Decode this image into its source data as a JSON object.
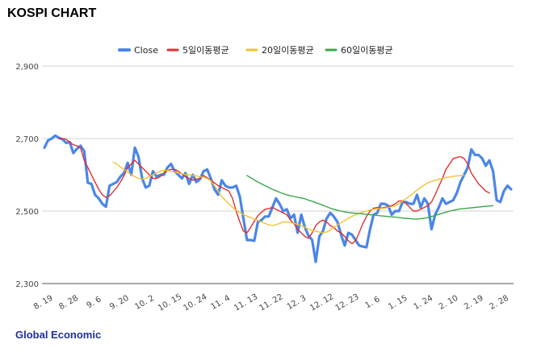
{
  "header": {
    "title": "KOSPI CHART"
  },
  "footer": {
    "source": "Global Economic"
  },
  "chart_data": {
    "type": "line",
    "ylim": [
      2300,
      2900
    ],
    "yticks": [
      2300,
      2500,
      2700,
      2900
    ],
    "grid": true,
    "legend_position": "top",
    "xticks": [
      "8. 19",
      "8. 28",
      "9. 6",
      "9. 20",
      "10. 2",
      "10. 15",
      "10. 24",
      "11. 4",
      "11. 13",
      "11. 22",
      "12. 3",
      "12. 12",
      "12. 23",
      "1. 6",
      "1. 15",
      "1. 24",
      "2. 10",
      "2. 19",
      "2. 28"
    ],
    "x_index": [
      0,
      7,
      14,
      21,
      28,
      35,
      42,
      49,
      56,
      63,
      70,
      77,
      84,
      91,
      98,
      105,
      112,
      119,
      126
    ],
    "series": [
      {
        "name": "Close",
        "color": "#4a86e8",
        "start": 0,
        "values": [
          2675,
          2695,
          2700,
          2708,
          2702,
          2698,
          2688,
          2690,
          2660,
          2672,
          2680,
          2665,
          2578,
          2575,
          2545,
          2535,
          2520,
          2512,
          2570,
          2575,
          2580,
          2595,
          2605,
          2633,
          2600,
          2675,
          2650,
          2590,
          2565,
          2570,
          2610,
          2595,
          2600,
          2600,
          2620,
          2630,
          2610,
          2600,
          2590,
          2605,
          2575,
          2600,
          2580,
          2588,
          2610,
          2615,
          2590,
          2560,
          2545,
          2585,
          2570,
          2565,
          2565,
          2570,
          2540,
          2480,
          2420,
          2420,
          2418,
          2470,
          2475,
          2485,
          2485,
          2510,
          2535,
          2520,
          2500,
          2505,
          2480,
          2490,
          2440,
          2490,
          2455,
          2432,
          2420,
          2360,
          2430,
          2445,
          2480,
          2495,
          2485,
          2470,
          2435,
          2405,
          2440,
          2435,
          2420,
          2405,
          2402,
          2400,
          2450,
          2490,
          2495,
          2520,
          2520,
          2515,
          2490,
          2500,
          2500,
          2525,
          2525,
          2520,
          2520,
          2545,
          2510,
          2535,
          2520,
          2450,
          2490,
          2510,
          2535,
          2520,
          2525,
          2530,
          2550,
          2580,
          2600,
          2620,
          2670,
          2655,
          2655,
          2645,
          2625,
          2640,
          2610,
          2530,
          2525,
          2555,
          2570,
          2560
        ]
      },
      {
        "name": "5일이동평균",
        "color": "#e03030",
        "start": 4,
        "values": [
          2700,
          2700,
          2698,
          2690,
          2683,
          2680,
          2674,
          2640,
          2620,
          2600,
          2580,
          2560,
          2545,
          2538,
          2542,
          2553,
          2565,
          2580,
          2598,
          2620,
          2630,
          2640,
          2630,
          2620,
          2610,
          2600,
          2590,
          2590,
          2595,
          2605,
          2612,
          2615,
          2615,
          2610,
          2602,
          2595,
          2590,
          2585,
          2588,
          2590,
          2598,
          2592,
          2585,
          2578,
          2570,
          2565,
          2560,
          2555,
          2535,
          2500,
          2470,
          2445,
          2440,
          2455,
          2472,
          2487,
          2497,
          2505,
          2507,
          2510,
          2505,
          2500,
          2495,
          2490,
          2475,
          2465,
          2450,
          2440,
          2430,
          2425,
          2440,
          2460,
          2470,
          2475,
          2470,
          2460,
          2455,
          2445,
          2440,
          2430,
          2418,
          2410,
          2418,
          2440,
          2465,
          2485,
          2500,
          2508,
          2510,
          2508,
          2510,
          2512,
          2515,
          2520,
          2528,
          2528,
          2520,
          2510,
          2500,
          2500,
          2505,
          2510,
          2515,
          2525,
          2545,
          2568,
          2590,
          2615,
          2630,
          2645,
          2648,
          2650,
          2645,
          2630,
          2605,
          2590,
          2575,
          2565,
          2555,
          2550
        ]
      },
      {
        "name": "20일이동평균",
        "color": "#f1c232",
        "start": 19,
        "values": [
          2635,
          2630,
          2622,
          2615,
          2608,
          2600,
          2595,
          2590,
          2588,
          2590,
          2595,
          2600,
          2605,
          2610,
          2612,
          2612,
          2610,
          2608,
          2605,
          2603,
          2600,
          2600,
          2598,
          2597,
          2595,
          2593,
          2590,
          2583,
          2570,
          2555,
          2540,
          2530,
          2520,
          2510,
          2502,
          2496,
          2490,
          2486,
          2482,
          2478,
          2474,
          2470,
          2466,
          2462,
          2460,
          2462,
          2466,
          2470,
          2470,
          2468,
          2466,
          2463,
          2460,
          2455,
          2450,
          2446,
          2444,
          2442,
          2440,
          2442,
          2448,
          2455,
          2462,
          2468,
          2474,
          2480,
          2485,
          2490,
          2494,
          2497,
          2500,
          2503,
          2505,
          2506,
          2507,
          2508,
          2510,
          2512,
          2515,
          2520,
          2528,
          2535,
          2542,
          2550,
          2558,
          2565,
          2572,
          2578,
          2582,
          2584,
          2588,
          2590,
          2592,
          2594,
          2596,
          2597,
          2598,
          2599
        ]
      },
      {
        "name": "60일이동평균",
        "color": "#3aa84a",
        "start": 56,
        "values": [
          2598,
          2592,
          2586,
          2580,
          2575,
          2570,
          2565,
          2560,
          2556,
          2552,
          2548,
          2545,
          2542,
          2540,
          2538,
          2536,
          2534,
          2530,
          2527,
          2523,
          2520,
          2516,
          2512,
          2508,
          2505,
          2502,
          2500,
          2498,
          2496,
          2495,
          2494,
          2493,
          2492,
          2491,
          2490,
          2489,
          2488,
          2487,
          2486,
          2485,
          2484,
          2483,
          2482,
          2481,
          2480,
          2479,
          2478,
          2478,
          2479,
          2480,
          2482,
          2485,
          2488,
          2491,
          2494,
          2497,
          2500,
          2502,
          2504,
          2506,
          2507,
          2508,
          2509,
          2510,
          2511,
          2512,
          2513,
          2514,
          2515
        ]
      }
    ]
  }
}
